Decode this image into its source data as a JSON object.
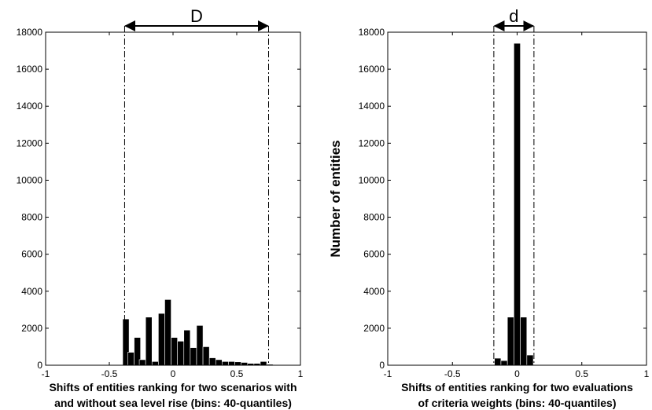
{
  "chart_data": [
    {
      "type": "bar",
      "title": "",
      "xlabel_lines": [
        "Shifts of entities ranking for two scenarios with",
        "and without sea level rise (bins: 40-quantiles)"
      ],
      "ylabel": "",
      "xlim": [
        -1,
        1
      ],
      "ylim": [
        0,
        18000
      ],
      "xticks": [
        -1,
        -0.5,
        0,
        0.5,
        1
      ],
      "xtick_labels": [
        "-1",
        "-0.5",
        "0",
        "0.5",
        "1"
      ],
      "yticks": [
        0,
        2000,
        4000,
        6000,
        8000,
        10000,
        12000,
        14000,
        16000,
        18000
      ],
      "ytick_labels": [
        "0",
        "2000",
        "4000",
        "6000",
        "8000",
        "10000",
        "12000",
        "14000",
        "16000",
        "18000"
      ],
      "bin_width": 0.05,
      "bins": [
        {
          "x": -0.37,
          "value": 2500
        },
        {
          "x": -0.33,
          "value": 700
        },
        {
          "x": -0.28,
          "value": 1500
        },
        {
          "x": -0.24,
          "value": 300
        },
        {
          "x": -0.19,
          "value": 2600
        },
        {
          "x": -0.14,
          "value": 200
        },
        {
          "x": -0.09,
          "value": 2800
        },
        {
          "x": -0.04,
          "value": 3550
        },
        {
          "x": 0.01,
          "value": 1500
        },
        {
          "x": 0.06,
          "value": 1300
        },
        {
          "x": 0.11,
          "value": 1900
        },
        {
          "x": 0.16,
          "value": 950
        },
        {
          "x": 0.21,
          "value": 2150
        },
        {
          "x": 0.26,
          "value": 1000
        },
        {
          "x": 0.31,
          "value": 400
        },
        {
          "x": 0.36,
          "value": 300
        },
        {
          "x": 0.41,
          "value": 200
        },
        {
          "x": 0.46,
          "value": 200
        },
        {
          "x": 0.51,
          "value": 180
        },
        {
          "x": 0.56,
          "value": 150
        },
        {
          "x": 0.61,
          "value": 100
        },
        {
          "x": 0.66,
          "value": 100
        },
        {
          "x": 0.71,
          "value": 200
        },
        {
          "x": 0.76,
          "value": 50
        }
      ],
      "span": {
        "label": "D",
        "from": -0.38,
        "to": 0.75
      }
    },
    {
      "type": "bar",
      "title": "",
      "xlabel_lines": [
        "Shifts of entities ranking for two evaluations",
        "of criteria weights (bins: 40-quantiles)"
      ],
      "ylabel": "Number of entities",
      "xlim": [
        -1,
        1
      ],
      "ylim": [
        0,
        18000
      ],
      "xticks": [
        -1,
        -0.5,
        0,
        0.5,
        1
      ],
      "xtick_labels": [
        "-1",
        "-0.5",
        "0",
        "0.5",
        "1"
      ],
      "yticks": [
        0,
        2000,
        4000,
        6000,
        8000,
        10000,
        12000,
        14000,
        16000,
        18000
      ],
      "ytick_labels": [
        "0",
        "2000",
        "4000",
        "6000",
        "8000",
        "10000",
        "12000",
        "14000",
        "16000",
        "18000"
      ],
      "bin_width": 0.05,
      "bins": [
        {
          "x": -0.15,
          "value": 380
        },
        {
          "x": -0.1,
          "value": 250
        },
        {
          "x": -0.05,
          "value": 2600
        },
        {
          "x": 0.0,
          "value": 17400
        },
        {
          "x": 0.05,
          "value": 2600
        },
        {
          "x": 0.1,
          "value": 550
        }
      ],
      "span": {
        "label": "d",
        "from": -0.18,
        "to": 0.13
      }
    }
  ]
}
